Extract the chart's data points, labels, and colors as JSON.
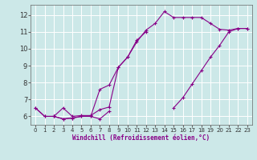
{
  "xlabel": "Windchill (Refroidissement éolien,°C)",
  "bg_color": "#cce8e8",
  "line_color": "#880088",
  "grid_color": "#ffffff",
  "xlim": [
    -0.5,
    23.5
  ],
  "ylim": [
    5.5,
    12.6
  ],
  "yticks": [
    6,
    7,
    8,
    9,
    10,
    11,
    12
  ],
  "xticks": [
    0,
    1,
    2,
    3,
    4,
    5,
    6,
    7,
    8,
    9,
    10,
    11,
    12,
    13,
    14,
    15,
    16,
    17,
    18,
    19,
    20,
    21,
    22,
    23
  ],
  "lines": [
    {
      "x": [
        0,
        1,
        2,
        3,
        4,
        5,
        6,
        7,
        8
      ],
      "y": [
        6.5,
        6.0,
        6.0,
        5.85,
        5.9,
        6.0,
        6.0,
        5.85,
        6.3
      ]
    },
    {
      "x": [
        2,
        3,
        4,
        5,
        6,
        7,
        8,
        9,
        10,
        11,
        12
      ],
      "y": [
        6.0,
        6.5,
        6.0,
        6.05,
        6.05,
        6.4,
        6.55,
        8.9,
        9.5,
        10.5,
        11.0
      ]
    },
    {
      "x": [
        0,
        1,
        2,
        3,
        4,
        5,
        6,
        7,
        8,
        9,
        10,
        11,
        12,
        13,
        14,
        15,
        16,
        17,
        18,
        19,
        20,
        21,
        22,
        23
      ],
      "y": [
        6.5,
        6.0,
        6.0,
        5.85,
        5.9,
        6.0,
        6.0,
        7.6,
        7.85,
        8.9,
        9.5,
        10.4,
        11.1,
        11.5,
        12.2,
        11.85,
        11.85,
        11.85,
        11.85,
        11.5,
        11.15,
        11.1,
        11.2,
        11.2
      ]
    },
    {
      "x": [
        15,
        16,
        17,
        18,
        19,
        20,
        21,
        22,
        23
      ],
      "y": [
        6.5,
        7.1,
        7.9,
        8.7,
        9.5,
        10.2,
        11.0,
        11.2,
        11.2
      ]
    }
  ]
}
